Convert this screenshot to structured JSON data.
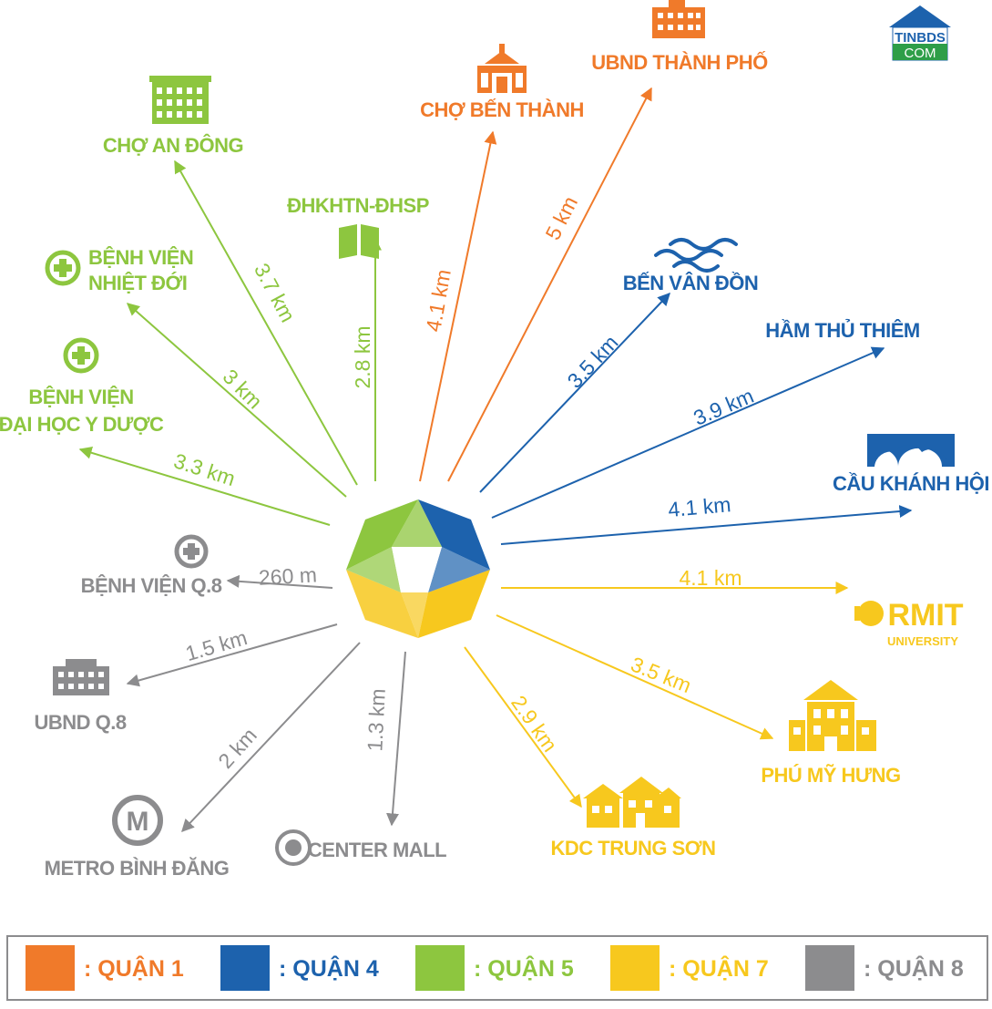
{
  "colors": {
    "q1": "#f07a2a",
    "q4": "#1d62ad",
    "q5": "#8dc63f",
    "q7": "#f7c81e",
    "q8": "#8c8c8e"
  },
  "logo": {
    "line1": "TINBDS",
    "line2": "COM"
  },
  "destinations": [
    {
      "id": "cho-an-dong",
      "label": [
        "CHỢ AN ĐÔNG"
      ],
      "distance": "3.7 km",
      "district": "q5",
      "icon": "building-icon"
    },
    {
      "id": "dhktn-dhsp",
      "label": [
        "ĐHKHTN-ĐHSP"
      ],
      "distance": "2.8 km",
      "district": "q5",
      "icon": "book-icon"
    },
    {
      "id": "benh-vien-nhiet-doi",
      "label": [
        "BỆNH VIỆN",
        "NHIỆT ĐỚI"
      ],
      "distance": "3 km",
      "district": "q5",
      "icon": "medical-cross-icon"
    },
    {
      "id": "benh-vien-dh-y-duoc",
      "label": [
        "BỆNH VIỆN",
        "ĐẠI HỌC Y DƯỢC"
      ],
      "distance": "3.3 km",
      "district": "q5",
      "icon": "medical-cross-icon"
    },
    {
      "id": "cho-ben-thanh",
      "label": [
        "CHỢ BẾN THÀNH"
      ],
      "distance": "4.1 km",
      "district": "q1",
      "icon": "market-icon"
    },
    {
      "id": "ubnd-thanh-pho",
      "label": [
        "UBND THÀNH PHỐ"
      ],
      "distance": "5 km",
      "district": "q1",
      "icon": "building-icon"
    },
    {
      "id": "ben-van-don",
      "label": [
        "BẾN VÂN ĐỒN"
      ],
      "distance": "3.5 km",
      "district": "q4",
      "icon": "waves-icon"
    },
    {
      "id": "ham-thu-thiem",
      "label": [
        "HẦM THỦ THIÊM"
      ],
      "distance": "3.9 km",
      "district": "q4",
      "icon": ""
    },
    {
      "id": "cau-khanh-hoi",
      "label": [
        "CẦU KHÁNH HỘI"
      ],
      "distance": "4.1 km",
      "district": "q4",
      "icon": "bridge-icon"
    },
    {
      "id": "rmit",
      "label": [
        "RMIT",
        "UNIVERSITY"
      ],
      "distance": "4.1 km",
      "district": "q7",
      "icon": "rmit-logo-icon"
    },
    {
      "id": "phu-my-hung",
      "label": [
        "PHÚ MỸ HƯNG"
      ],
      "distance": "3.5 km",
      "district": "q7",
      "icon": "apartment-icon"
    },
    {
      "id": "kdc-trung-son",
      "label": [
        "KDC TRUNG SƠN"
      ],
      "distance": "2.9 km",
      "district": "q7",
      "icon": "houses-icon"
    },
    {
      "id": "center-mall",
      "label": [
        "CENTER MALL"
      ],
      "distance": "1.3 km",
      "district": "q8",
      "icon": "target-icon"
    },
    {
      "id": "metro-binh-dang",
      "label": [
        "METRO BÌNH ĐĂNG"
      ],
      "distance": "2 km",
      "district": "q8",
      "icon": "metro-icon"
    },
    {
      "id": "ubnd-q8",
      "label": [
        "UBND Q.8"
      ],
      "distance": "1.5 km",
      "district": "q8",
      "icon": "building-icon"
    },
    {
      "id": "benh-vien-q8",
      "label": [
        "BỆNH VIỆN Q.8"
      ],
      "distance": "260 m",
      "district": "q8",
      "icon": "medical-cross-icon"
    }
  ],
  "legend": [
    {
      "district": "q1",
      "label": ": QUẬN 1"
    },
    {
      "district": "q4",
      "label": ": QUẬN 4"
    },
    {
      "district": "q5",
      "label": ": QUẬN 5"
    },
    {
      "district": "q7",
      "label": ": QUẬN 7"
    },
    {
      "district": "q8",
      "label": ": QUẬN 8"
    }
  ]
}
